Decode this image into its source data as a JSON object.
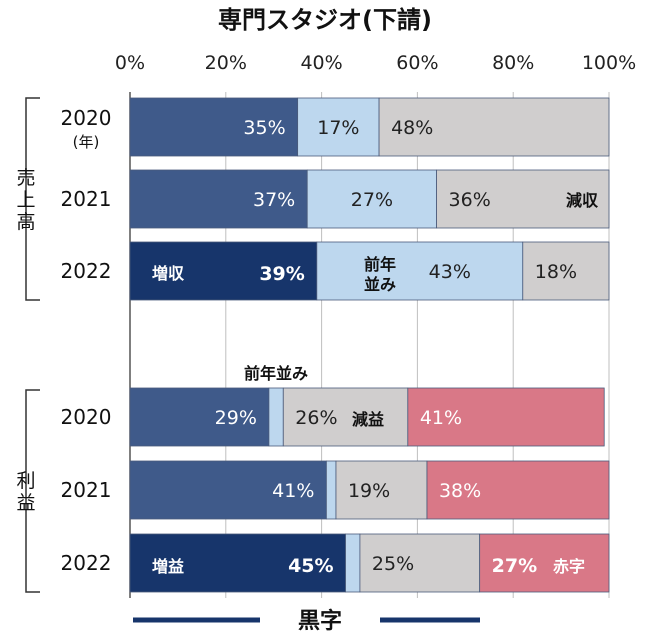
{
  "chart_data": {
    "type": "bar",
    "orientation": "horizontal-stacked-100",
    "title": "専門スタジオ(下請)",
    "x_ticks": [
      "0%",
      "20%",
      "40%",
      "60%",
      "80%",
      "100%"
    ],
    "xlim": [
      0,
      100
    ],
    "groups": [
      {
        "label": "売上高",
        "rows": [
          {
            "year": "2020",
            "sub": "(年)",
            "segments": [
              {
                "key": "up",
                "value": 35,
                "label": "35%"
              },
              {
                "key": "flat",
                "value": 17,
                "label": "17%"
              },
              {
                "key": "down",
                "value": 48,
                "label": "48%"
              }
            ]
          },
          {
            "year": "2021",
            "segments": [
              {
                "key": "up",
                "value": 37,
                "label": "37%"
              },
              {
                "key": "flat",
                "value": 27,
                "label": "27%"
              },
              {
                "key": "down",
                "value": 36,
                "label": "36%"
              }
            ]
          },
          {
            "year": "2022",
            "segments": [
              {
                "key": "up",
                "value": 39,
                "label": "39%"
              },
              {
                "key": "flat",
                "value": 43,
                "label": "43%"
              },
              {
                "key": "down",
                "value": 18,
                "label": "18%"
              }
            ]
          }
        ]
      },
      {
        "label": "利益",
        "rows": [
          {
            "year": "2020",
            "segments": [
              {
                "key": "up",
                "value": 29,
                "label": "29%"
              },
              {
                "key": "flat",
                "value": 3,
                "label": ""
              },
              {
                "key": "down",
                "value": 26,
                "label": "26%"
              },
              {
                "key": "loss",
                "value": 41,
                "label": "41%"
              }
            ]
          },
          {
            "year": "2021",
            "segments": [
              {
                "key": "up",
                "value": 41,
                "label": "41%"
              },
              {
                "key": "flat",
                "value": 2,
                "label": ""
              },
              {
                "key": "down",
                "value": 19,
                "label": "19%"
              },
              {
                "key": "loss",
                "value": 38,
                "label": "38%"
              }
            ]
          },
          {
            "year": "2022",
            "segments": [
              {
                "key": "up",
                "value": 45,
                "label": "45%"
              },
              {
                "key": "flat",
                "value": 3,
                "label": ""
              },
              {
                "key": "down",
                "value": 25,
                "label": "25%"
              },
              {
                "key": "loss",
                "value": 27,
                "label": "27%"
              }
            ]
          }
        ]
      }
    ],
    "annotations": {
      "sales_decrease": "減収",
      "sales_increase": "増収",
      "sales_flat": "前年\n並み",
      "profit_flat": "前年並み",
      "profit_decrease": "減益",
      "profit_increase": "増益",
      "profit_loss": "赤字"
    },
    "legend": "黒字",
    "colors": {
      "up": "#3f5a8a",
      "up_highlight": "#17356b",
      "flat": "#bdd7ee",
      "down": "#d0cece",
      "loss": "#d97887",
      "grid": "#bfbfbf",
      "border": "#4a5a7a",
      "legend_line": "#17356b"
    }
  }
}
